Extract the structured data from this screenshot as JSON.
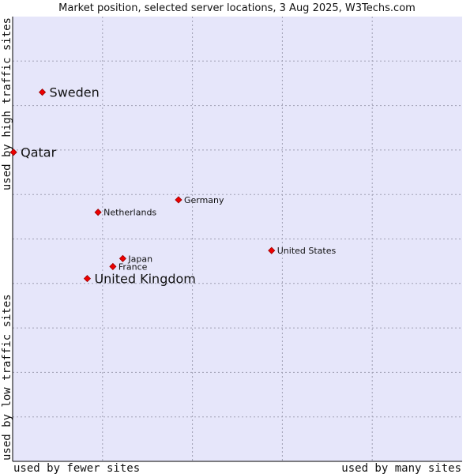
{
  "chart_data": {
    "type": "scatter",
    "title": "Market position, selected server locations, 3 Aug 2025, W3Techs.com",
    "xlabel_left": "used by fewer sites",
    "xlabel_right": "used by many sites",
    "ylabel_bottom": "used by low traffic sites",
    "ylabel_top": "used by high traffic sites",
    "xlim": [
      0,
      100
    ],
    "ylim": [
      0,
      100
    ],
    "grid": true,
    "colors": {
      "plot_background": "#e6e6fa",
      "grid": "#a0a0b4",
      "marker": "#ee0000",
      "marker_border": "#990000",
      "axis": "#000000"
    },
    "points": [
      {
        "name": "Sweden",
        "x": 6.6,
        "y": 83.0,
        "emphasis": true
      },
      {
        "name": "Qatar",
        "x": 0.2,
        "y": 69.5,
        "emphasis": true
      },
      {
        "name": "Germany",
        "x": 36.9,
        "y": 58.8,
        "emphasis": false
      },
      {
        "name": "Netherlands",
        "x": 19.0,
        "y": 56.0,
        "emphasis": false
      },
      {
        "name": "United States",
        "x": 57.6,
        "y": 47.4,
        "emphasis": false
      },
      {
        "name": "Japan",
        "x": 24.5,
        "y": 45.6,
        "emphasis": false
      },
      {
        "name": "France",
        "x": 22.3,
        "y": 43.8,
        "emphasis": false
      },
      {
        "name": "United Kingdom",
        "x": 16.6,
        "y": 41.1,
        "emphasis": true
      }
    ]
  }
}
